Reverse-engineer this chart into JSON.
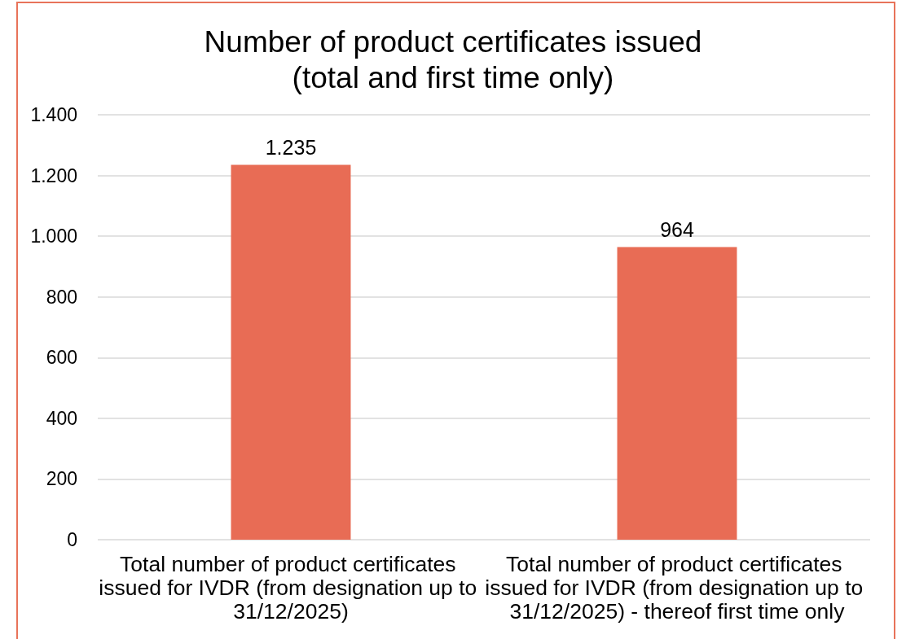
{
  "chart_data": {
    "type": "bar",
    "title": "Number of product certificates issued\n(total and first time only)",
    "categories": [
      "Total number of product certificates issued for IVDR (from designation up to 31/12/2025)",
      "Total number of product certificates issued for IVDR (from designation up to 31/12/2025) - thereof first time only"
    ],
    "values": [
      1235,
      964
    ],
    "value_labels": [
      "1.235",
      "964"
    ],
    "color": "#e86c55",
    "ylim": [
      0,
      1400
    ],
    "yticks": [
      0,
      200,
      400,
      600,
      800,
      {
        "value": 1000,
        "label": "1.000"
      },
      {
        "value": 1200,
        "label": "1.200"
      },
      {
        "value": 1400,
        "label": "1.400"
      }
    ],
    "grid": "y"
  }
}
